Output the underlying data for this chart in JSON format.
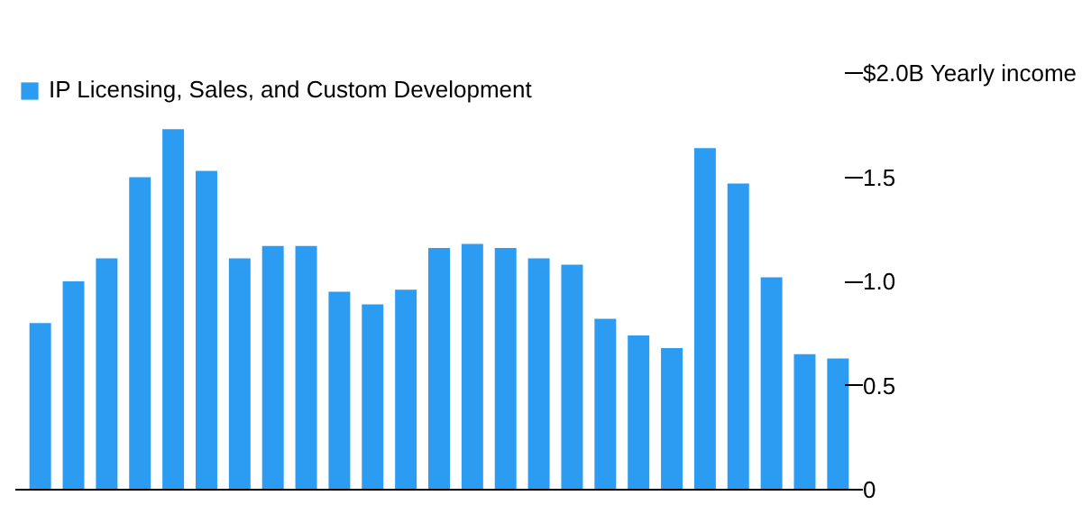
{
  "chart_data": {
    "type": "bar",
    "legend": "top left",
    "tick_labels": "y",
    "categories": [
      null,
      null,
      null,
      null,
      null,
      null,
      null,
      null,
      null,
      null,
      null,
      null,
      null,
      null,
      null,
      null,
      null,
      null,
      null,
      null,
      null,
      null,
      null,
      null,
      null
    ],
    "series": [
      {
        "name": "IP Licensing, Sales, and Custom Development",
        "color": "#2b9cf2",
        "values": [
          0.8,
          1.0,
          1.11,
          1.5,
          1.73,
          1.53,
          1.11,
          1.17,
          1.17,
          0.95,
          0.89,
          0.96,
          1.16,
          1.18,
          1.16,
          1.11,
          1.08,
          0.82,
          0.74,
          0.68,
          1.64,
          1.47,
          1.02,
          0.65,
          0.63
        ]
      }
    ],
    "ylim": [
      0,
      2.0
    ],
    "yticks": [
      0,
      0.5,
      {
        "value": 1,
        "label": "1.0"
      },
      1.5,
      {
        "value": 2,
        "label": "$2.0B Yearly income"
      }
    ]
  }
}
